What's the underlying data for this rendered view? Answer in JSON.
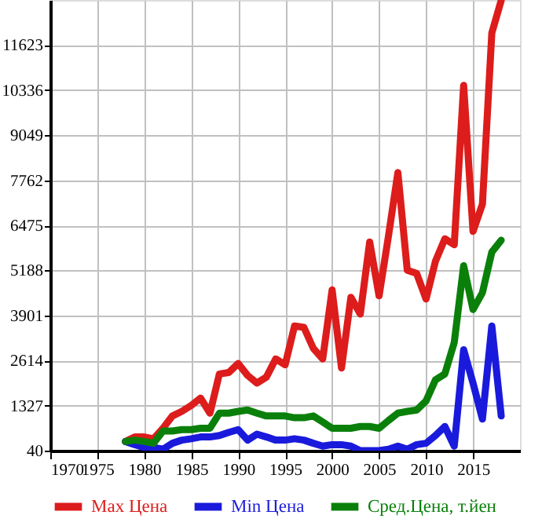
{
  "chart_data": {
    "type": "line",
    "x": [
      1978,
      1979,
      1980,
      1981,
      1982,
      1983,
      1984,
      1985,
      1986,
      1987,
      1988,
      1989,
      1990,
      1991,
      1992,
      1993,
      1994,
      1995,
      1996,
      1997,
      1998,
      1999,
      2000,
      2001,
      2002,
      2003,
      2004,
      2005,
      2006,
      2007,
      2008,
      2009,
      2010,
      2011,
      2012,
      2013,
      2014,
      2015,
      2016,
      2017,
      2018
    ],
    "series": [
      {
        "name": "Max Цена",
        "color": "#dd1c1c",
        "values": [
          300,
          430,
          430,
          380,
          680,
          1030,
          1160,
          1330,
          1540,
          1110,
          2230,
          2270,
          2530,
          2190,
          1970,
          2140,
          2660,
          2490,
          3600,
          3560,
          2960,
          2660,
          4630,
          2400,
          4420,
          3940,
          6000,
          4460,
          6170,
          7980,
          5190,
          5100,
          4370,
          5450,
          6090,
          5920,
          10470,
          6300,
          7080,
          11970,
          12900
        ]
      },
      {
        "name": "Min Цена",
        "color": "#1a1adc",
        "values": [
          300,
          210,
          130,
          130,
          80,
          250,
          340,
          380,
          430,
          430,
          470,
          560,
          640,
          340,
          510,
          430,
          340,
          340,
          380,
          340,
          250,
          170,
          210,
          210,
          170,
          40,
          40,
          40,
          80,
          170,
          80,
          210,
          250,
          470,
          730,
          170,
          2920,
          1970,
          940,
          3600,
          1030
        ]
      },
      {
        "name": "Сред.Цена, т.йен",
        "color": "#0a800a",
        "values": [
          300,
          340,
          300,
          250,
          600,
          600,
          640,
          640,
          680,
          680,
          1110,
          1110,
          1160,
          1200,
          1110,
          1030,
          1030,
          1030,
          980,
          980,
          1030,
          860,
          680,
          680,
          680,
          730,
          730,
          680,
          900,
          1110,
          1160,
          1200,
          1460,
          2060,
          2230,
          3130,
          5320,
          4070,
          4550,
          5710,
          6050
        ]
      }
    ],
    "xlim": [
      1970,
      2020
    ],
    "xticks": [
      1970,
      1975,
      1980,
      1985,
      1990,
      1995,
      2000,
      2005,
      2010,
      2015
    ],
    "ylim": [
      40,
      12910
    ],
    "yticks": [
      40,
      1327,
      2614,
      3901,
      5188,
      6475,
      7762,
      9049,
      10336,
      11623
    ],
    "grid": true,
    "legend": "bottom",
    "marker": "none",
    "line_style": "solid"
  }
}
